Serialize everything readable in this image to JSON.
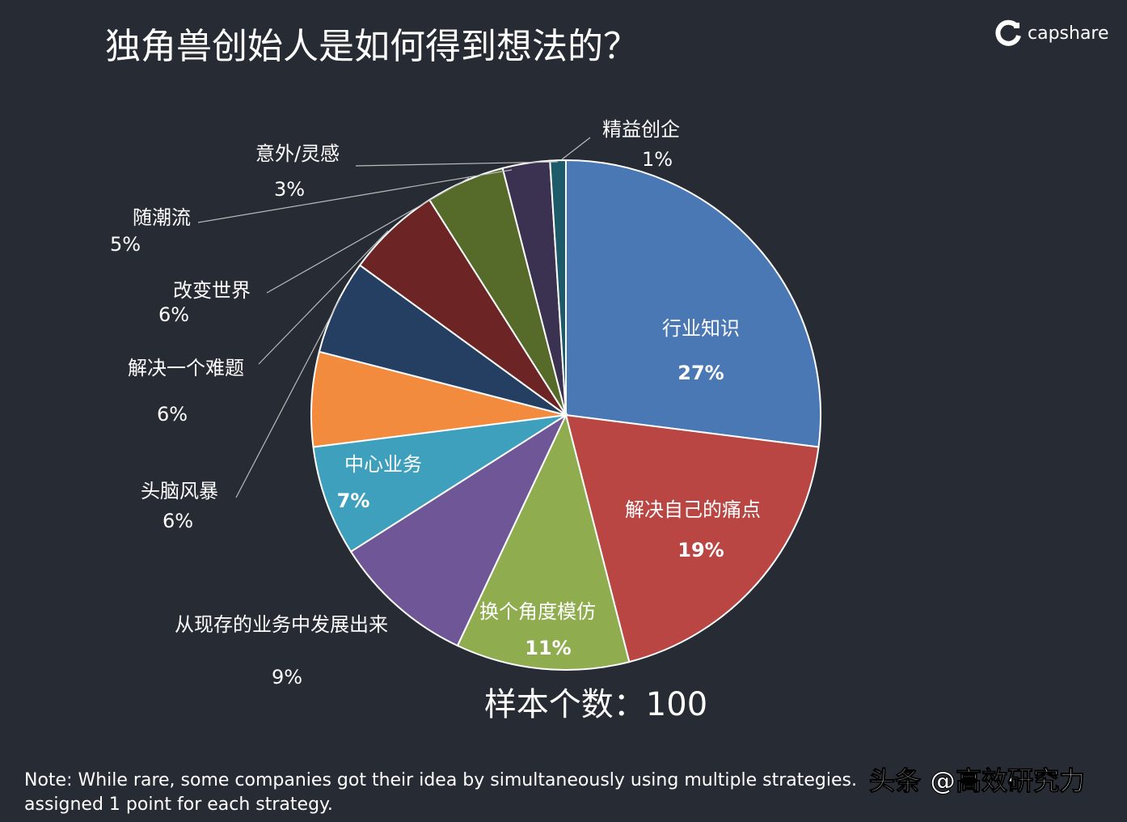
{
  "chart_data": {
    "type": "pie",
    "title": "独角兽创始人是如何得到想法的？",
    "categories": [
      "行业知识",
      "解决自己的痛点",
      "换个角度模仿",
      "从现存的业务中发展出来",
      "中心业务",
      "头脑风暴",
      "解决一个难题",
      "改变世界",
      "随潮流",
      "意外/灵感",
      "精益创企"
    ],
    "values": [
      27,
      19,
      11,
      9,
      7,
      6,
      6,
      6,
      5,
      3,
      1
    ],
    "value_labels": [
      "27%",
      "19%",
      "11%",
      "9%",
      "7%",
      "6%",
      "6%",
      "6%",
      "5%",
      "3%",
      "1%"
    ],
    "colors": [
      "#4a78b5",
      "#b94643",
      "#8fac4f",
      "#6f5797",
      "#3ea0bd",
      "#f38b3e",
      "#253f62",
      "#6d2424",
      "#566b29",
      "#3b3150",
      "#1d5a6a"
    ],
    "annotations": [
      "样本个数：100"
    ],
    "note": [
      "Note:  While rare, some companies got their idea by simultaneously using multiple strategies.",
      "assigned 1 point for each strategy."
    ],
    "logo": "capshare",
    "watermark": "头条 @高效研究力"
  }
}
